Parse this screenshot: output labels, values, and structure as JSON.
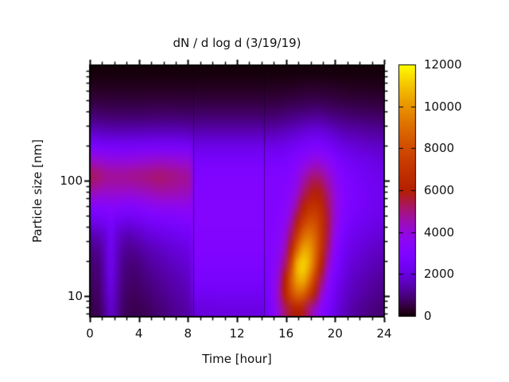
{
  "colors": {
    "background": "#ffffff",
    "text": "#111111",
    "frame": "#000000"
  },
  "chart_data": {
    "type": "heatmap",
    "title": "dN / d log d (3/19/19)",
    "xlabel": "Time [hour]",
    "ylabel": "Particle size [nm]",
    "x_range": [
      0,
      24
    ],
    "y_range_nm": [
      6.6,
      1000
    ],
    "y_scale": "log",
    "color_range": [
      0,
      12000
    ],
    "palette": "gnuplot pm3d rgbformulae 7,5,15 (black-purple-magenta-red-orange-yellow)",
    "x_ticks": {
      "major": [
        0,
        4,
        8,
        12,
        16,
        20,
        24
      ],
      "minor_step_hours": 1
    },
    "y_ticks": {
      "major_labeled": [
        10,
        100
      ],
      "minor": [
        7,
        8,
        9,
        20,
        30,
        40,
        50,
        60,
        70,
        80,
        90,
        200,
        300,
        400,
        500,
        600,
        700,
        800,
        900
      ]
    },
    "colorbar_ticks": [
      0,
      2000,
      4000,
      6000,
      8000,
      10000,
      12000
    ],
    "segment_boundaries_hours": [
      8.4,
      14.2
    ],
    "grid": {
      "hours": [
        0,
        0.5,
        1,
        1.5,
        2,
        2.5,
        3,
        3.5,
        4,
        4.5,
        5,
        5.5,
        6,
        6.5,
        7,
        7.5,
        8,
        8.5,
        9,
        9.5,
        10,
        10.5,
        11,
        11.5,
        12,
        12.5,
        13,
        13.5,
        14,
        14.5,
        15,
        15.5,
        16,
        16.5,
        17,
        17.5,
        18,
        18.5,
        19,
        19.5,
        20,
        20.5,
        21,
        21.5,
        22,
        22.5,
        23,
        23.5,
        24
      ],
      "sizes_nm": [
        6.6,
        9.0,
        12.3,
        16.9,
        23.1,
        31.6,
        43.2,
        59.1,
        80.9,
        110.7,
        151.4,
        207.1,
        283.4,
        387.7,
        530.4,
        725.7,
        1000
      ],
      "values_by_column_bottom_to_top": [
        [
          600,
          700,
          800,
          900,
          1100,
          1500,
          2300,
          3300,
          4500,
          5300,
          4300,
          2800,
          1700,
          950,
          520,
          260,
          80
        ],
        [
          700,
          800,
          900,
          1000,
          1200,
          1600,
          2400,
          3300,
          4400,
          5100,
          4200,
          2750,
          1650,
          930,
          510,
          250,
          80
        ],
        [
          1200,
          1400,
          1500,
          1600,
          1700,
          1900,
          2500,
          3300,
          4300,
          4900,
          4100,
          2700,
          1600,
          900,
          500,
          250,
          80
        ],
        [
          1800,
          2000,
          2200,
          2300,
          2400,
          2500,
          2800,
          3400,
          4300,
          4800,
          4000,
          2650,
          1580,
          890,
          500,
          250,
          80
        ],
        [
          1300,
          1400,
          1500,
          1600,
          1700,
          1900,
          2400,
          3300,
          4300,
          4800,
          4000,
          2650,
          1570,
          890,
          490,
          240,
          80
        ],
        [
          800,
          900,
          1000,
          1100,
          1300,
          1600,
          2300,
          3200,
          4300,
          4800,
          4000,
          2600,
          1550,
          880,
          490,
          240,
          80
        ],
        [
          650,
          750,
          850,
          950,
          1150,
          1500,
          2250,
          3200,
          4250,
          4850,
          4000,
          2600,
          1550,
          880,
          480,
          240,
          80
        ],
        [
          600,
          700,
          800,
          950,
          1200,
          1600,
          2300,
          3250,
          4300,
          4900,
          4050,
          2620,
          1560,
          880,
          480,
          240,
          80
        ],
        [
          650,
          780,
          900,
          1050,
          1300,
          1750,
          2450,
          3350,
          4400,
          4950,
          4100,
          2650,
          1570,
          890,
          490,
          240,
          80
        ],
        [
          700,
          850,
          1000,
          1200,
          1450,
          1900,
          2600,
          3450,
          4450,
          5000,
          4150,
          2680,
          1580,
          890,
          490,
          250,
          80
        ],
        [
          800,
          950,
          1100,
          1300,
          1550,
          2000,
          2700,
          3550,
          4550,
          5100,
          4200,
          2700,
          1600,
          900,
          500,
          250,
          80
        ],
        [
          900,
          1050,
          1200,
          1400,
          1650,
          2100,
          2800,
          3650,
          4650,
          5150,
          4250,
          2720,
          1610,
          900,
          500,
          250,
          80
        ],
        [
          1000,
          1150,
          1300,
          1500,
          1750,
          2200,
          2850,
          3700,
          4650,
          5100,
          4250,
          2720,
          1610,
          910,
          500,
          250,
          80
        ],
        [
          1100,
          1250,
          1400,
          1600,
          1850,
          2250,
          2900,
          3700,
          4600,
          5000,
          4200,
          2700,
          1600,
          900,
          500,
          250,
          80
        ],
        [
          1200,
          1350,
          1500,
          1700,
          1950,
          2350,
          2950,
          3700,
          4550,
          4900,
          4150,
          2680,
          1590,
          900,
          490,
          250,
          80
        ],
        [
          1300,
          1450,
          1600,
          1800,
          2050,
          2450,
          3000,
          3700,
          4500,
          4800,
          4100,
          2650,
          1580,
          890,
          490,
          240,
          80
        ],
        [
          1400,
          1550,
          1700,
          1900,
          2150,
          2500,
          3050,
          3700,
          4450,
          4700,
          4050,
          2620,
          1560,
          880,
          480,
          240,
          80
        ],
        [
          2000,
          2400,
          2700,
          2900,
          3000,
          3100,
          3150,
          3150,
          3100,
          3000,
          2700,
          2200,
          1500,
          900,
          500,
          250,
          80
        ],
        [
          2000,
          2400,
          2700,
          2900,
          3000,
          3100,
          3150,
          3150,
          3100,
          3000,
          2700,
          2200,
          1500,
          900,
          500,
          250,
          80
        ],
        [
          2050,
          2400,
          2700,
          2900,
          3000,
          3100,
          3150,
          3150,
          3100,
          3000,
          2700,
          2200,
          1500,
          900,
          500,
          250,
          80
        ],
        [
          2050,
          2400,
          2700,
          2900,
          3000,
          3100,
          3150,
          3150,
          3100,
          3000,
          2700,
          2200,
          1500,
          900,
          500,
          250,
          80
        ],
        [
          2100,
          2450,
          2700,
          2900,
          3000,
          3100,
          3150,
          3150,
          3100,
          3000,
          2700,
          2200,
          1500,
          900,
          500,
          250,
          80
        ],
        [
          2100,
          2450,
          2700,
          2900,
          3000,
          3100,
          3150,
          3150,
          3100,
          3000,
          2700,
          2200,
          1500,
          900,
          500,
          250,
          80
        ],
        [
          2100,
          2450,
          2700,
          2900,
          3000,
          3100,
          3150,
          3150,
          3100,
          3000,
          2700,
          2200,
          1500,
          900,
          500,
          250,
          80
        ],
        [
          2100,
          2450,
          2700,
          2900,
          3000,
          3100,
          3150,
          3150,
          3100,
          3000,
          2700,
          2200,
          1500,
          900,
          500,
          250,
          80
        ],
        [
          2100,
          2450,
          2700,
          2900,
          3000,
          3100,
          3150,
          3150,
          3100,
          3000,
          2700,
          2200,
          1500,
          900,
          500,
          250,
          80
        ],
        [
          2100,
          2450,
          2700,
          2900,
          3000,
          3100,
          3150,
          3150,
          3100,
          3000,
          2700,
          2200,
          1500,
          900,
          500,
          250,
          80
        ],
        [
          2100,
          2450,
          2700,
          2900,
          3000,
          3100,
          3150,
          3150,
          3100,
          3000,
          2700,
          2200,
          1500,
          900,
          500,
          250,
          80
        ],
        [
          2100,
          2450,
          2700,
          2900,
          3000,
          3100,
          3150,
          3150,
          3100,
          3000,
          2700,
          2200,
          1500,
          900,
          500,
          250,
          80
        ],
        [
          2500,
          2700,
          2800,
          2900,
          3000,
          3050,
          3100,
          3100,
          3050,
          3000,
          2700,
          2200,
          1500,
          900,
          500,
          250,
          80
        ],
        [
          3200,
          3400,
          3400,
          3300,
          3200,
          3150,
          3100,
          3100,
          3050,
          3000,
          2700,
          2200,
          1500,
          900,
          500,
          250,
          80
        ],
        [
          4200,
          4600,
          4400,
          4000,
          3700,
          3500,
          3300,
          3200,
          3100,
          3000,
          2750,
          2250,
          1550,
          950,
          520,
          260,
          80
        ],
        [
          5200,
          6200,
          6000,
          5200,
          4500,
          4000,
          3600,
          3400,
          3250,
          3100,
          2800,
          2300,
          1600,
          1000,
          550,
          270,
          80
        ],
        [
          5800,
          7800,
          8600,
          7800,
          6400,
          5300,
          4500,
          3900,
          3500,
          3300,
          2950,
          2400,
          1700,
          1050,
          580,
          280,
          80
        ],
        [
          6000,
          8800,
          10300,
          10600,
          8900,
          7200,
          5800,
          4800,
          4100,
          3700,
          3200,
          2550,
          1800,
          1100,
          600,
          300,
          90
        ],
        [
          5800,
          8600,
          10600,
          11300,
          10400,
          8800,
          7200,
          5900,
          5000,
          4300,
          3500,
          2700,
          1900,
          1150,
          620,
          310,
          90
        ],
        [
          5000,
          7400,
          9300,
          10500,
          10300,
          9300,
          8000,
          6700,
          5600,
          4800,
          3800,
          2850,
          2000,
          1200,
          650,
          320,
          90
        ],
        [
          4200,
          5800,
          7300,
          8600,
          9000,
          8700,
          7900,
          6900,
          5900,
          5100,
          4000,
          2950,
          2050,
          1250,
          660,
          330,
          90
        ],
        [
          3400,
          4300,
          5300,
          6300,
          7000,
          7200,
          7000,
          6400,
          5700,
          4900,
          3900,
          2900,
          2000,
          1200,
          640,
          320,
          90
        ],
        [
          2800,
          3300,
          3900,
          4600,
          5200,
          5500,
          5600,
          5400,
          5000,
          4400,
          3600,
          2700,
          1900,
          1150,
          620,
          310,
          90
        ],
        [
          2300,
          2600,
          2900,
          3300,
          3700,
          4100,
          4400,
          4400,
          4200,
          3800,
          3200,
          2450,
          1750,
          1050,
          580,
          290,
          80
        ],
        [
          1900,
          2100,
          2300,
          2600,
          2900,
          3200,
          3500,
          3600,
          3500,
          3300,
          2850,
          2250,
          1600,
          1000,
          550,
          280,
          80
        ],
        [
          1600,
          1800,
          2000,
          2200,
          2400,
          2700,
          2950,
          3100,
          3100,
          2950,
          2600,
          2100,
          1500,
          950,
          520,
          260,
          80
        ],
        [
          1400,
          1600,
          1750,
          1950,
          2150,
          2400,
          2650,
          2800,
          2850,
          2750,
          2450,
          2000,
          1450,
          900,
          500,
          250,
          80
        ],
        [
          1250,
          1450,
          1600,
          1800,
          2000,
          2250,
          2500,
          2650,
          2700,
          2600,
          2350,
          1900,
          1400,
          880,
          490,
          240,
          80
        ],
        [
          1150,
          1350,
          1500,
          1700,
          1900,
          2150,
          2400,
          2550,
          2600,
          2500,
          2250,
          1850,
          1350,
          860,
          480,
          240,
          80
        ],
        [
          1050,
          1250,
          1400,
          1600,
          1800,
          2050,
          2300,
          2450,
          2500,
          2400,
          2200,
          1800,
          1300,
          840,
          470,
          230,
          80
        ],
        [
          950,
          1150,
          1300,
          1500,
          1700,
          1950,
          2200,
          2350,
          2400,
          2300,
          2100,
          1750,
          1280,
          820,
          460,
          230,
          80
        ],
        [
          900,
          1100,
          1250,
          1450,
          1650,
          1900,
          2150,
          2300,
          2350,
          2250,
          2050,
          1700,
          1250,
          800,
          450,
          220,
          80
        ]
      ]
    }
  }
}
